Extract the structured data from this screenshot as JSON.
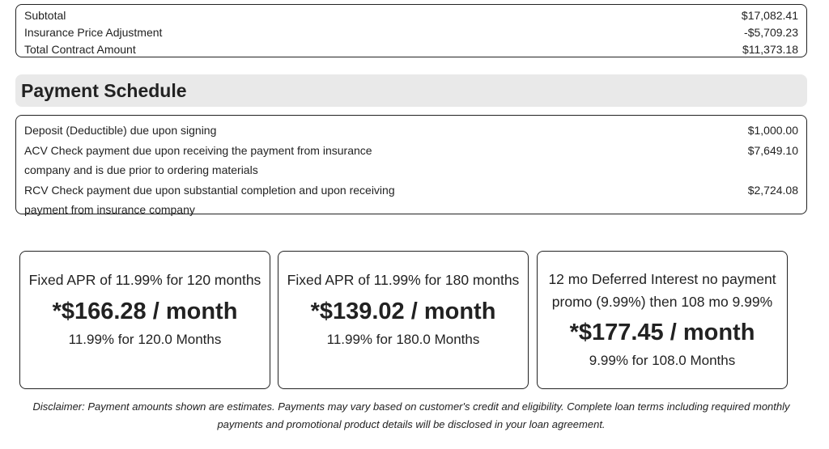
{
  "totals": {
    "rows": [
      {
        "label": "Subtotal",
        "amount": "$17,082.41"
      },
      {
        "label": "Insurance Price Adjustment",
        "amount": "-$5,709.23"
      },
      {
        "label": "Total Contract Amount",
        "amount": "$11,373.18"
      }
    ]
  },
  "payment_schedule": {
    "title": "Payment Schedule",
    "rows": [
      {
        "description": "Deposit (Deductible) due upon signing",
        "amount": "$1,000.00"
      },
      {
        "description": "ACV Check payment due upon receiving the payment from insurance company and is due prior to ordering materials",
        "amount": "$7,649.10"
      },
      {
        "description": "RCV Check payment due upon substantial completion and upon receiving payment from insurance company",
        "amount": "$2,724.08"
      }
    ]
  },
  "financing": {
    "options": [
      {
        "title": "Fixed APR of 11.99% for 120 months",
        "price": "*$166.28 / month",
        "detail": "11.99% for 120.0 Months"
      },
      {
        "title": "Fixed APR of 11.99% for 180 months",
        "price": "*$139.02 / month",
        "detail": "11.99% for 180.0 Months"
      },
      {
        "title": "12 mo Deferred Interest no payment promo (9.99%) then 108 mo 9.99%",
        "price": "*$177.45 / month",
        "detail": "9.99% for 108.0 Months"
      }
    ]
  },
  "disclaimer": "Disclaimer: Payment amounts shown are estimates. Payments may vary based on customer's credit and eligibility. Complete loan terms including required monthly payments and promotional product details will be disclosed in your loan agreement."
}
